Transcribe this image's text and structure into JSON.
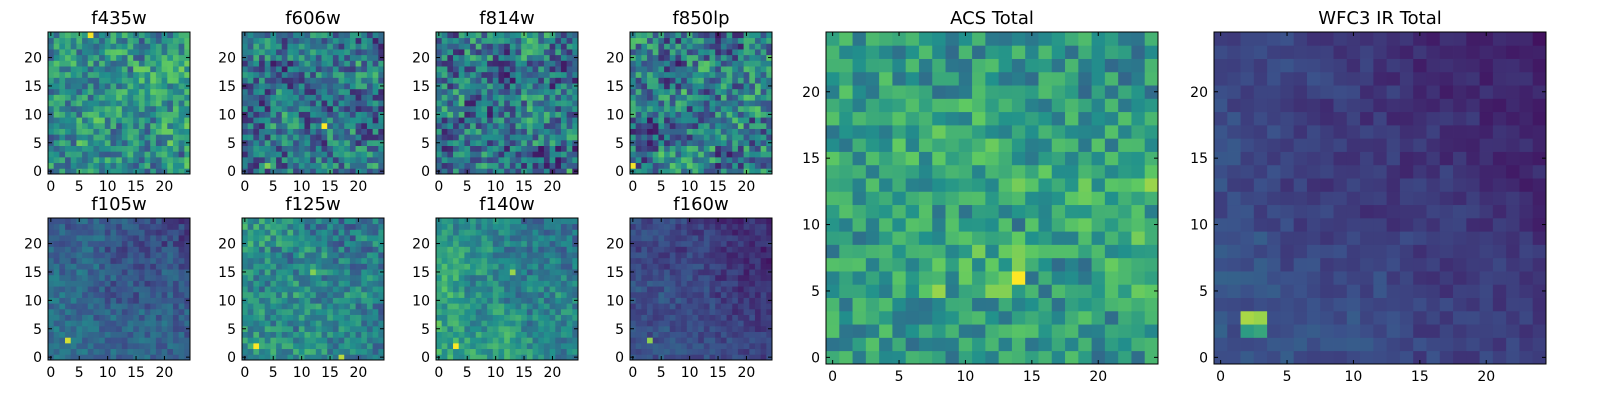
{
  "figure": {
    "colormap": "viridis",
    "colormap_stops": [
      "#440154",
      "#3b528b",
      "#21918c",
      "#5ec962",
      "#fde725"
    ]
  },
  "chart_data": [
    {
      "type": "heatmap",
      "title": "f435w",
      "grid_size": 25,
      "x_ticks": [
        0,
        5,
        10,
        15,
        20
      ],
      "y_ticks": [
        0,
        5,
        10,
        15,
        20
      ],
      "xlim": [
        0,
        24
      ],
      "ylim": [
        0,
        24
      ],
      "grid": false,
      "seed": 11,
      "mean": 0.52,
      "noise": 0.22,
      "trend": 0.0,
      "hotspots": [
        [
          7,
          24,
          0.45
        ],
        [
          23,
          18,
          0.4
        ],
        [
          23,
          3,
          -0.4
        ]
      ],
      "values_note": ""
    },
    {
      "type": "heatmap",
      "title": "f606w",
      "grid_size": 25,
      "x_ticks": [
        0,
        5,
        10,
        15,
        20
      ],
      "y_ticks": [
        0,
        5,
        10,
        15,
        20
      ],
      "xlim": [
        0,
        24
      ],
      "ylim": [
        0,
        24
      ],
      "grid": false,
      "seed": 23,
      "mean": 0.4,
      "noise": 0.24,
      "trend": 0.0,
      "hotspots": [
        [
          14,
          8,
          0.55
        ],
        [
          4,
          1,
          0.5
        ]
      ]
    },
    {
      "type": "heatmap",
      "title": "f814w",
      "grid_size": 25,
      "x_ticks": [
        0,
        5,
        10,
        15,
        20
      ],
      "y_ticks": [
        0,
        5,
        10,
        15,
        20
      ],
      "xlim": [
        0,
        24
      ],
      "ylim": [
        0,
        24
      ],
      "grid": false,
      "seed": 37,
      "mean": 0.4,
      "noise": 0.26,
      "trend": 0.0,
      "hotspots": [
        [
          4,
          15,
          0.3
        ],
        [
          23,
          0,
          0.5
        ]
      ]
    },
    {
      "type": "heatmap",
      "title": "f850lp",
      "grid_size": 25,
      "x_ticks": [
        0,
        5,
        10,
        15,
        20
      ],
      "y_ticks": [
        0,
        5,
        10,
        15,
        20
      ],
      "xlim": [
        0,
        24
      ],
      "ylim": [
        0,
        24
      ],
      "grid": false,
      "seed": 41,
      "mean": 0.4,
      "noise": 0.26,
      "trend": 0.0,
      "hotspots": [
        [
          24,
          20,
          0.5
        ],
        [
          0,
          1,
          0.5
        ]
      ]
    },
    {
      "type": "heatmap",
      "title": "f105w",
      "grid_size": 25,
      "x_ticks": [
        0,
        5,
        10,
        15,
        20
      ],
      "y_ticks": [
        0,
        5,
        10,
        15,
        20
      ],
      "xlim": [
        0,
        24
      ],
      "ylim": [
        0,
        24
      ],
      "grid": false,
      "seed": 53,
      "mean": 0.42,
      "noise": 0.1,
      "trend": -0.22,
      "hotspots": [
        [
          3,
          3,
          0.5
        ],
        [
          11,
          14,
          0.2
        ]
      ]
    },
    {
      "type": "heatmap",
      "title": "f125w",
      "grid_size": 25,
      "x_ticks": [
        0,
        5,
        10,
        15,
        20
      ],
      "y_ticks": [
        0,
        5,
        10,
        15,
        20
      ],
      "xlim": [
        0,
        24
      ],
      "ylim": [
        0,
        24
      ],
      "grid": false,
      "seed": 67,
      "mean": 0.55,
      "noise": 0.16,
      "trend": -0.15,
      "hotspots": [
        [
          2,
          2,
          0.4
        ],
        [
          12,
          15,
          0.3
        ],
        [
          17,
          0,
          0.35
        ]
      ]
    },
    {
      "type": "heatmap",
      "title": "f140w",
      "grid_size": 25,
      "x_ticks": [
        0,
        5,
        10,
        15,
        20
      ],
      "y_ticks": [
        0,
        5,
        10,
        15,
        20
      ],
      "xlim": [
        0,
        24
      ],
      "ylim": [
        0,
        24
      ],
      "grid": false,
      "seed": 79,
      "mean": 0.62,
      "noise": 0.14,
      "trend": -0.25,
      "hotspots": [
        [
          3,
          2,
          0.4
        ],
        [
          13,
          15,
          0.35
        ],
        [
          0,
          6,
          0.3
        ]
      ]
    },
    {
      "type": "heatmap",
      "title": "f160w",
      "grid_size": 25,
      "x_ticks": [
        0,
        5,
        10,
        15,
        20
      ],
      "y_ticks": [
        0,
        5,
        10,
        15,
        20
      ],
      "xlim": [
        0,
        24
      ],
      "ylim": [
        0,
        24
      ],
      "grid": false,
      "seed": 83,
      "mean": 0.28,
      "noise": 0.07,
      "trend": -0.15,
      "hotspots": [
        [
          3,
          3,
          0.55
        ]
      ]
    },
    {
      "type": "heatmap",
      "title": "ACS Total",
      "grid_size": 25,
      "x_ticks": [
        0,
        5,
        10,
        15,
        20
      ],
      "y_ticks": [
        0,
        5,
        10,
        15,
        20
      ],
      "xlim": [
        0,
        24
      ],
      "ylim": [
        0,
        24
      ],
      "grid": false,
      "seed": 97,
      "mean": 0.58,
      "noise": 0.18,
      "trend": 0.0,
      "hotspots": [
        [
          14,
          13,
          0.4
        ],
        [
          8,
          5,
          0.4
        ],
        [
          14,
          6,
          0.35
        ],
        [
          15,
          8,
          0.35
        ],
        [
          24,
          13,
          0.3
        ]
      ]
    },
    {
      "type": "heatmap",
      "title": "WFC3 IR Total",
      "grid_size": 25,
      "x_ticks": [
        0,
        5,
        10,
        15,
        20
      ],
      "y_ticks": [
        0,
        5,
        10,
        15,
        20
      ],
      "xlim": [
        0,
        24
      ],
      "ylim": [
        0,
        24
      ],
      "grid": false,
      "seed": 101,
      "mean": 0.28,
      "noise": 0.05,
      "trend": -0.18,
      "hotspots": [
        [
          2,
          3,
          0.65
        ],
        [
          3,
          3,
          0.6
        ],
        [
          2,
          2,
          0.3
        ],
        [
          3,
          2,
          0.3
        ]
      ]
    }
  ]
}
